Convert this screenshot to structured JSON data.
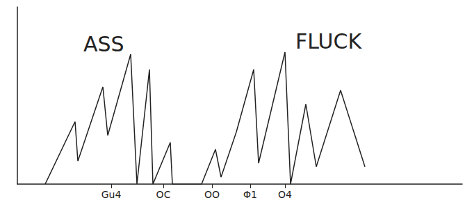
{
  "chart_data": {
    "type": "line",
    "annotations": [
      "ASS",
      "FLUCK"
    ],
    "x": [
      40,
      83,
      87,
      123,
      130,
      163,
      172,
      190,
      195,
      220,
      223,
      265,
      285,
      293,
      315,
      340,
      347,
      385,
      393,
      415,
      430,
      465,
      500
    ],
    "values": [
      0,
      90,
      33,
      140,
      70,
      187,
      0,
      165,
      0,
      60,
      0,
      0,
      50,
      10,
      75,
      165,
      30,
      190,
      0,
      115,
      25,
      135,
      25
    ],
    "color": "#222222",
    "xlim": [
      0,
      640
    ],
    "ylim": [
      0,
      255
    ],
    "xticks": [
      {
        "value": 135,
        "label": "Gu4"
      },
      {
        "value": 210,
        "label": "OC"
      },
      {
        "value": 280,
        "label": "OO"
      },
      {
        "value": 335,
        "label": "Φ1"
      },
      {
        "value": 385,
        "label": "O4"
      }
    ],
    "grid": false,
    "tick_labels": "x"
  }
}
